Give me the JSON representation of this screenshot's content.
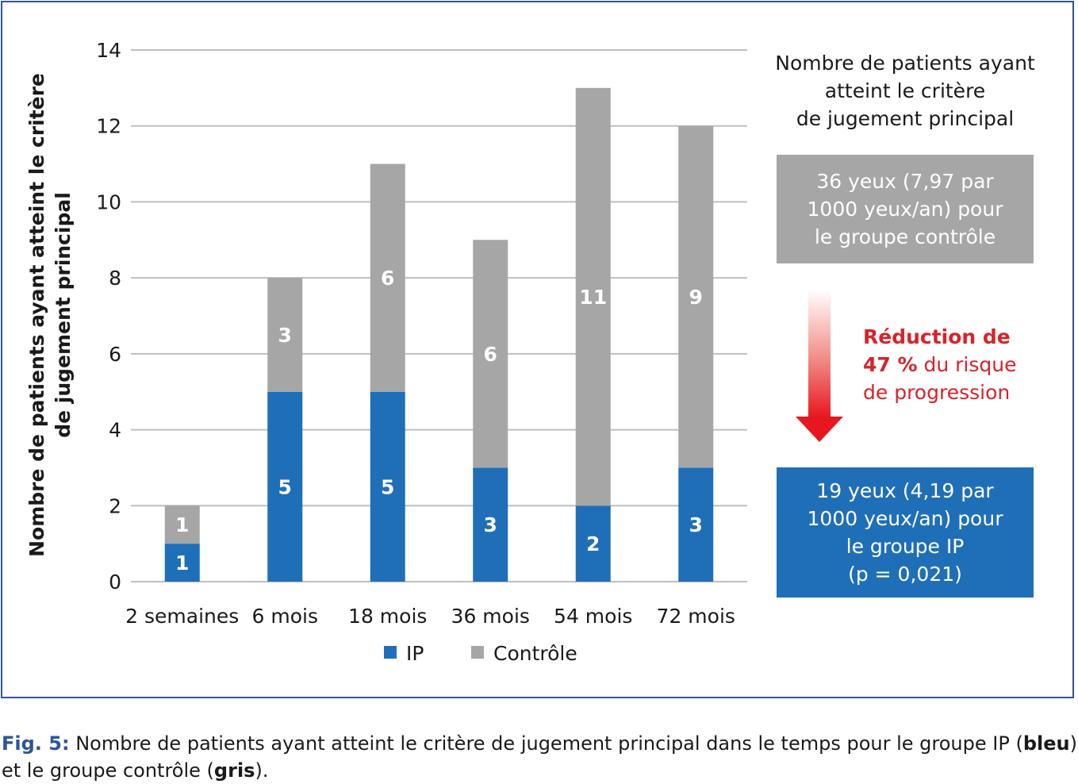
{
  "chart_data": {
    "type": "bar",
    "stacked": true,
    "categories": [
      "2 semaines",
      "6 mois",
      "18 mois",
      "36 mois",
      "54 mois",
      "72 mois"
    ],
    "series": [
      {
        "name": "IP",
        "values": [
          1,
          5,
          5,
          3,
          2,
          3
        ],
        "color": "#1f6fb8"
      },
      {
        "name": "Contrôle",
        "values": [
          1,
          3,
          6,
          6,
          11,
          9
        ],
        "color": "#a6a6a6"
      }
    ],
    "ylabel": "Nombre de patients ayant atteint le critère de jugement principal",
    "ylim": [
      0,
      14
    ],
    "yticks": [
      0,
      2,
      4,
      6,
      8,
      10,
      12,
      14
    ],
    "grid": true,
    "legend": "bottom"
  },
  "side_panel": {
    "title": "Nombre de patients ayant\natteint le critère\nde jugement principal",
    "control_box": "36 yeux (7,97 par\n1000 yeux/an) pour\nle groupe contrôle",
    "ip_box": "19 yeux (4,19 par\n1000 yeux/an) pour\nle groupe IP\n(p = 0,021)",
    "reduction_line1": "Réduction de",
    "reduction_pct": "47 %",
    "reduction_rest1": " du risque",
    "reduction_line3": "de progression",
    "arrow_color": "#e8161e"
  },
  "caption": {
    "label": "Fig. 5:",
    "text1": " Nombre de patients ayant atteint le critère de jugement principal dans le temps pour le groupe IP (",
    "bold1": "bleu",
    "text2": ") et le groupe contrôle (",
    "bold2": "gris",
    "text3": ")."
  },
  "colors": {
    "frame": "#2f5597",
    "ip": "#1f6fb8",
    "control": "#a6a6a6",
    "grid": "#bfbfbf"
  }
}
